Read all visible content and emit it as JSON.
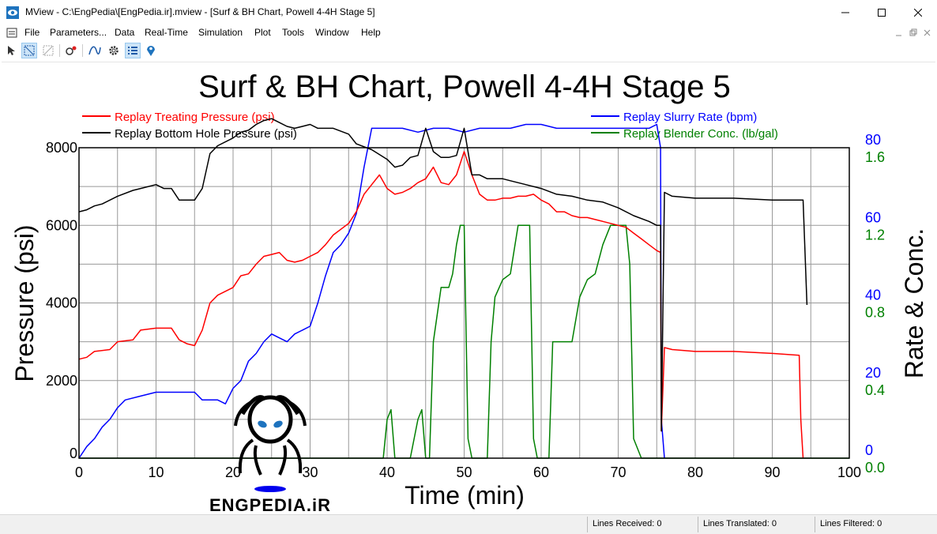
{
  "window": {
    "title": "MView - C:\\EngPedia\\[EngPedia.ir].mview - [Surf & BH Chart, Powell 4-4H Stage 5]"
  },
  "menu": [
    "File",
    "Parameters...",
    "Data",
    "Real-Time",
    "Simulation",
    "Plot",
    "Tools",
    "Window",
    "Help"
  ],
  "toolbar": {
    "icons": [
      "pointer-icon",
      "zoom-box-icon",
      "zoom-disabled-icon",
      "fit-icon",
      "curve-icon",
      "settings-gear-icon",
      "list-icon",
      "location-pin-icon"
    ]
  },
  "status": {
    "received": "Lines Received: 0",
    "translated": "Lines Translated: 0",
    "filtered": "Lines Filtered: 0"
  },
  "watermark": {
    "text": "ENGPEDIA.iR"
  },
  "colors": {
    "treating": "#ff0000",
    "bottom_hole": "#000000",
    "slurry": "#0000ff",
    "blender": "#008000"
  },
  "chart_data": {
    "type": "line",
    "title": "Surf & BH Chart, Powell 4-4H Stage 5",
    "xlabel": "Time (min)",
    "ylabel": "Pressure (psi)",
    "y2label": "Rate & Conc.",
    "xlim": [
      0,
      100
    ],
    "ylim": [
      0,
      8000
    ],
    "rate_lim": [
      0,
      80
    ],
    "conc_lim": [
      0.0,
      1.6
    ],
    "grid": true,
    "x_ticks": [
      "0",
      "10",
      "20",
      "30",
      "40",
      "50",
      "60",
      "70",
      "80",
      "90",
      "100"
    ],
    "y_ticks": [
      "0",
      "2000",
      "4000",
      "6000",
      "8000"
    ],
    "rate_ticks": [
      "0",
      "20",
      "40",
      "60",
      "80"
    ],
    "conc_ticks": [
      "0.0",
      "0.4",
      "0.8",
      "1.2",
      "1.6"
    ],
    "series": [
      {
        "name": "Replay Treating Pressure (psi)",
        "axis": "pressure",
        "color": "#ff0000",
        "x": [
          0,
          1,
          2,
          4,
          5,
          7,
          8,
          10,
          11,
          12,
          13,
          14,
          15,
          16,
          17,
          18,
          20,
          21,
          22,
          23,
          24,
          25,
          26,
          27,
          28,
          29,
          30,
          31,
          32,
          33,
          35,
          36,
          37,
          38,
          39,
          40,
          41,
          42,
          43,
          44,
          45,
          46,
          47,
          48,
          49,
          50,
          51,
          52,
          53,
          54,
          55,
          56,
          57,
          58,
          59,
          60,
          61,
          62,
          63,
          64,
          65,
          66,
          67,
          68,
          69,
          70,
          71,
          72,
          73,
          74,
          75,
          75.5,
          75.6,
          76,
          77,
          80,
          85,
          90,
          93.5,
          93.7,
          94
        ],
        "y": [
          2550,
          2600,
          2750,
          2800,
          3000,
          3050,
          3300,
          3350,
          3350,
          3350,
          3050,
          2950,
          2900,
          3300,
          4000,
          4200,
          4400,
          4700,
          4750,
          5000,
          5200,
          5250,
          5300,
          5100,
          5050,
          5100,
          5200,
          5300,
          5500,
          5750,
          6050,
          6350,
          6800,
          7050,
          7300,
          6950,
          6800,
          6850,
          6950,
          7100,
          7200,
          7500,
          7100,
          7050,
          7300,
          7900,
          7300,
          6800,
          6650,
          6650,
          6700,
          6700,
          6750,
          6750,
          6800,
          6650,
          6550,
          6350,
          6350,
          6250,
          6200,
          6200,
          6150,
          6100,
          6050,
          6000,
          5950,
          5800,
          5650,
          5500,
          5350,
          5300,
          700,
          2850,
          2800,
          2750,
          2750,
          2700,
          2650,
          1000,
          0
        ]
      },
      {
        "name": "Replay Bottom Hole Pressure (psi)",
        "axis": "pressure",
        "color": "#000000",
        "x": [
          0,
          1,
          2,
          3,
          5,
          7,
          8,
          10,
          11,
          12,
          13,
          15,
          16,
          17,
          18,
          20,
          21,
          22,
          23,
          24,
          25,
          26,
          27,
          28,
          29,
          30,
          31,
          33,
          35,
          36,
          38,
          40,
          41,
          42,
          43,
          44,
          45,
          46,
          47,
          48,
          49,
          50,
          51,
          52,
          53,
          55,
          56,
          58,
          60,
          62,
          64,
          66,
          68,
          70,
          72,
          74,
          75,
          75.5,
          75.6,
          76,
          77,
          80,
          85,
          90,
          94,
          94.5
        ],
        "y": [
          6350,
          6400,
          6500,
          6550,
          6750,
          6900,
          6950,
          7050,
          6950,
          6950,
          6650,
          6650,
          6950,
          7850,
          8050,
          8250,
          8400,
          8450,
          8600,
          8700,
          8750,
          8650,
          8550,
          8500,
          8550,
          8600,
          8500,
          8500,
          8350,
          8100,
          7950,
          7700,
          7500,
          7550,
          7750,
          7800,
          8500,
          7900,
          7750,
          7750,
          7800,
          8500,
          7300,
          7300,
          7200,
          7200,
          7150,
          7050,
          6950,
          6800,
          6750,
          6650,
          6600,
          6450,
          6250,
          6100,
          6000,
          6000,
          700,
          6850,
          6750,
          6700,
          6700,
          6650,
          6650,
          3950
        ]
      },
      {
        "name": "Replay Slurry Rate (bpm)",
        "axis": "rate",
        "color": "#0000ff",
        "x": [
          0,
          1,
          2,
          3,
          4,
          5,
          6,
          8,
          10,
          12,
          14,
          15,
          16,
          18,
          19,
          20,
          21,
          22,
          23,
          24,
          25,
          26,
          27,
          28,
          29,
          30,
          31,
          32,
          33,
          34,
          35,
          36,
          37,
          38,
          40,
          42,
          44,
          46,
          48,
          50,
          52,
          54,
          56,
          58,
          60,
          62,
          64,
          66,
          68,
          70,
          72,
          74,
          75,
          75.5,
          75.6,
          76
        ],
        "y": [
          0,
          3,
          5,
          8,
          10,
          13,
          15,
          16,
          17,
          17,
          17,
          17,
          15,
          15,
          14,
          18,
          20,
          25,
          27,
          30,
          32,
          31,
          30,
          32,
          33,
          34,
          40,
          47,
          53,
          55,
          58,
          63,
          75,
          85,
          85,
          85,
          84,
          85,
          85,
          84,
          85,
          85,
          85,
          86,
          86,
          85,
          85,
          85,
          85,
          85,
          85,
          85,
          86,
          80,
          10,
          0
        ]
      },
      {
        "name": "Replay Blender Conc. (lb/gal)",
        "axis": "conc",
        "color": "#008000",
        "x": [
          0,
          39.5,
          40,
          40.5,
          41,
          41.5,
          42,
          43,
          44,
          44.5,
          45,
          45.5,
          46,
          47,
          48,
          48.5,
          49,
          49.5,
          50,
          50.5,
          51,
          53,
          53.5,
          54,
          55,
          56,
          57,
          58,
          58.5,
          59,
          59.5,
          60,
          61,
          61.5,
          62,
          63,
          64,
          65,
          66,
          67,
          68,
          69,
          70,
          71,
          71.5,
          72,
          73,
          100
        ],
        "y": [
          0,
          0,
          0.2,
          0.25,
          0.0,
          0,
          0,
          0,
          0.2,
          0.25,
          0.0,
          0,
          0.6,
          0.88,
          0.88,
          0.95,
          1.1,
          1.2,
          1.2,
          0.1,
          0,
          0,
          0.6,
          0.83,
          0.92,
          0.95,
          1.2,
          1.2,
          1.2,
          0.1,
          0,
          0,
          0,
          0.6,
          0.6,
          0.6,
          0.6,
          0.83,
          0.92,
          0.95,
          1.1,
          1.2,
          1.2,
          1.2,
          1.0,
          0.1,
          0,
          0
        ]
      }
    ]
  }
}
